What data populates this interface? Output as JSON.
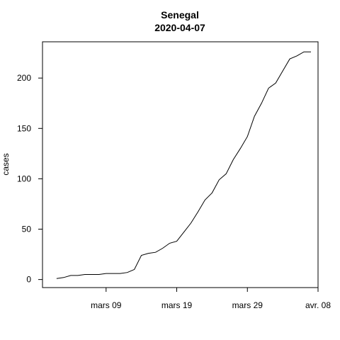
{
  "chart_data": {
    "type": "line",
    "title": "Senegal",
    "subtitle": "2020-04-07",
    "xlabel": "",
    "ylabel": "cases",
    "x": [
      "2020-03-02",
      "2020-03-03",
      "2020-03-04",
      "2020-03-05",
      "2020-03-06",
      "2020-03-07",
      "2020-03-08",
      "2020-03-09",
      "2020-03-10",
      "2020-03-11",
      "2020-03-12",
      "2020-03-13",
      "2020-03-14",
      "2020-03-15",
      "2020-03-16",
      "2020-03-17",
      "2020-03-18",
      "2020-03-19",
      "2020-03-20",
      "2020-03-21",
      "2020-03-22",
      "2020-03-23",
      "2020-03-24",
      "2020-03-25",
      "2020-03-26",
      "2020-03-27",
      "2020-03-28",
      "2020-03-29",
      "2020-03-30",
      "2020-03-31",
      "2020-04-01",
      "2020-04-02",
      "2020-04-03",
      "2020-04-04",
      "2020-04-05",
      "2020-04-06",
      "2020-04-07"
    ],
    "series": [
      {
        "values": [
          1,
          2,
          4,
          4,
          5,
          5,
          5,
          6,
          6,
          6,
          7,
          10,
          24,
          26,
          27,
          31,
          36,
          38,
          47,
          56,
          67,
          79,
          86,
          99,
          105,
          119,
          130,
          142,
          162,
          175,
          190,
          195,
          207,
          219,
          222,
          226,
          226
        ]
      }
    ],
    "x_ticks": [
      {
        "date": "2020-03-09",
        "label": "mars 09"
      },
      {
        "date": "2020-03-19",
        "label": "mars 19"
      },
      {
        "date": "2020-03-29",
        "label": "mars 29"
      },
      {
        "date": "2020-04-08",
        "label": "avr. 08"
      }
    ],
    "y_ticks": [
      0,
      50,
      100,
      150,
      200
    ],
    "xlim": [
      "2020-02-29",
      "2020-04-08"
    ],
    "ylim": [
      -8,
      236
    ],
    "grid": false,
    "line_color": "#000000"
  }
}
